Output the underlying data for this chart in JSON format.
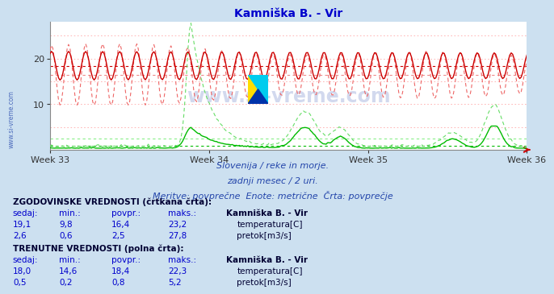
{
  "title": "Kamniška B. - Vir",
  "subtitle1": "Slovenija / reke in morje.",
  "subtitle2": "zadnji mesec / 2 uri.",
  "subtitle3": "Meritve: povprečne  Enote: metrične  Črta: povprečje",
  "bg_color": "#cce0f0",
  "plot_bg_color": "#ffffff",
  "x_tick_labels": [
    "Week 33",
    "Week 34",
    "Week 35",
    "Week 36"
  ],
  "ylim": [
    0,
    28
  ],
  "yticks": [
    10,
    20
  ],
  "y_gridlines": [
    5,
    10,
    15,
    20,
    25
  ],
  "n_points": 336,
  "temp_solid_color": "#cc0000",
  "temp_dashed_color": "#ee6666",
  "flow_solid_color": "#00bb00",
  "flow_dashed_color": "#66dd66",
  "temp_avg_current": 18.4,
  "temp_avg_hist": 16.4,
  "flow_avg_current": 0.8,
  "flow_avg_hist": 2.5,
  "temp_min_current": 14.6,
  "temp_max_current": 22.3,
  "temp_min_hist": 9.8,
  "temp_max_hist": 23.2,
  "flow_min_current": 0.2,
  "flow_max_current": 5.2,
  "flow_min_hist": 0.6,
  "flow_max_hist": 27.8,
  "watermark": "www.si-vreme.com",
  "legend_station": "Kamniška B. - Vir",
  "legend_text_hist_temp": "temperatura[C]",
  "legend_text_hist_flow": "pretok[m3/s]",
  "legend_text_curr_temp": "temperatura[C]",
  "legend_text_curr_flow": "pretok[m3/s]",
  "table_hist_label": "ZGODOVINSKE VREDNOSTI (črtkana črta):",
  "table_curr_label": "TRENUTNE VREDNOSTI (polna črta):",
  "table_col_headers": [
    "sedaj:",
    "min.:",
    "povpr.:",
    "maks.:"
  ],
  "hist_temp_vals": [
    "19,1",
    "9,8",
    "16,4",
    "23,2"
  ],
  "hist_flow_vals": [
    "2,6",
    "0,6",
    "2,5",
    "27,8"
  ],
  "curr_temp_vals": [
    "18,0",
    "14,6",
    "18,4",
    "22,3"
  ],
  "curr_flow_vals": [
    "0,5",
    "0,2",
    "0,8",
    "5,2"
  ]
}
